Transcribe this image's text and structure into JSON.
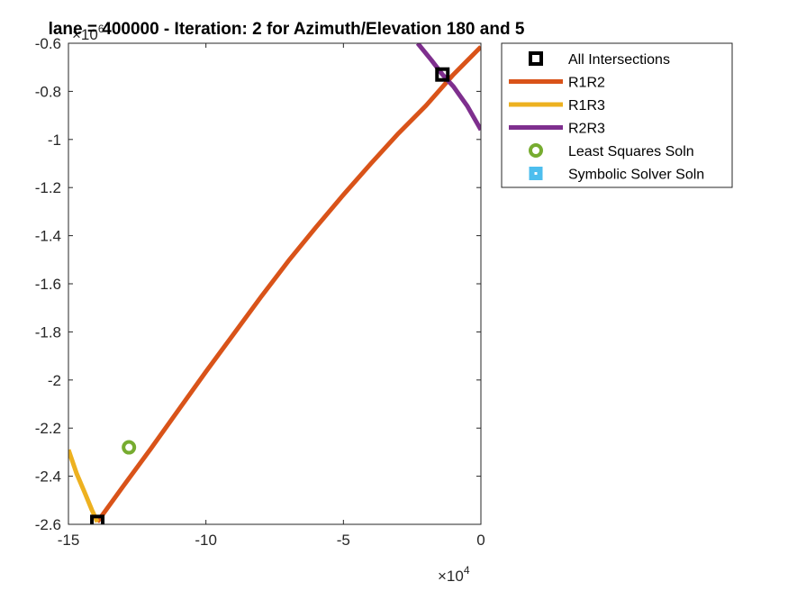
{
  "chart_data": {
    "type": "line",
    "title": "lane = 400000 - Iteration: 2 for Azimuth/Elevation 180 and 5",
    "xlabel": "",
    "ylabel": "",
    "x_multiplier": "×10",
    "x_multiplier_exp": "4",
    "y_multiplier": "×10",
    "y_multiplier_exp": "6",
    "xlim": [
      -150000,
      0
    ],
    "ylim": [
      -2600000,
      -600000
    ],
    "x_ticks": [
      -150000,
      -100000,
      -50000,
      0
    ],
    "x_tick_labels": [
      "-15",
      "-10",
      "-5",
      "0"
    ],
    "y_ticks": [
      -2600000,
      -2400000,
      -2200000,
      -2000000,
      -1800000,
      -1600000,
      -1400000,
      -1200000,
      -1000000,
      -800000,
      -600000
    ],
    "y_tick_labels": [
      "-2.6",
      "-2.4",
      "-2.2",
      "-2",
      "-1.8",
      "-1.6",
      "-1.4",
      "-1.2",
      "-1",
      "-0.8",
      "-0.6"
    ],
    "grid": false,
    "legend_position": "outside-top-right",
    "series": [
      {
        "name": "All Intersections",
        "kind": "marker-square",
        "color": "#000000",
        "x": [
          -14000,
          -139500
        ],
        "y": [
          -730000,
          -2590000
        ]
      },
      {
        "name": "R1R2",
        "kind": "line",
        "color": "#D95319",
        "x": [
          -139500,
          -130000,
          -120000,
          -110000,
          -100000,
          -90000,
          -80000,
          -70000,
          -60000,
          -50000,
          -40000,
          -30000,
          -20000,
          -10000,
          0
        ],
        "y": [
          -2590000,
          -2440000,
          -2285000,
          -2125000,
          -1965000,
          -1810000,
          -1655000,
          -1505000,
          -1365000,
          -1230000,
          -1100000,
          -975000,
          -860000,
          -730000,
          -615000
        ]
      },
      {
        "name": "R1R3",
        "kind": "line",
        "color": "#EDB120",
        "x": [
          -150000,
          -147000,
          -144000,
          -141500,
          -139500
        ],
        "y": [
          -2290000,
          -2390000,
          -2470000,
          -2540000,
          -2590000
        ]
      },
      {
        "name": "R2R3",
        "kind": "line",
        "color": "#7E2F8E",
        "x": [
          -23000,
          -18000,
          -14000,
          -10000,
          -5000,
          0
        ],
        "y": [
          -600000,
          -670000,
          -730000,
          -780000,
          -860000,
          -960000
        ]
      },
      {
        "name": "Least Squares Soln",
        "kind": "marker-circle",
        "color": "#77AC30",
        "x": [
          -128000
        ],
        "y": [
          -2280000
        ]
      },
      {
        "name": "Symbolic Solver Soln",
        "kind": "marker-square-filled",
        "color": "#4DBEEE",
        "x": [],
        "y": []
      }
    ]
  }
}
